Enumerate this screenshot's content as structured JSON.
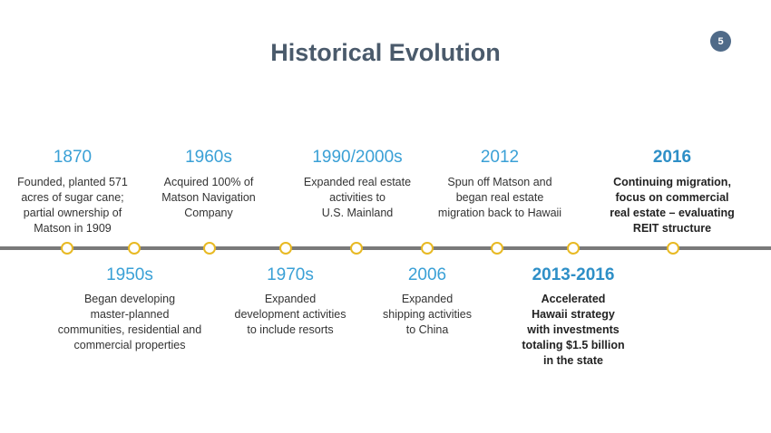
{
  "slide": {
    "title": "Historical Evolution",
    "page_number": "5"
  },
  "timeline": {
    "above": [
      {
        "year": "1870",
        "desc_lines": [
          "Founded, planted 571",
          "acres of sugar cane;",
          "partial ownership of",
          "Matson in 1909"
        ]
      },
      {
        "year": "1960s",
        "desc_lines": [
          "Acquired 100% of",
          "Matson Navigation",
          "Company"
        ]
      },
      {
        "year": "1990/2000s",
        "desc_lines": [
          "Expanded real estate",
          "activities to",
          "U.S. Mainland"
        ]
      },
      {
        "year": "2012",
        "desc_lines": [
          "Spun off Matson and",
          "began real estate",
          "migration back to Hawaii"
        ]
      },
      {
        "year": "2016",
        "desc_lines": [
          "Continuing migration,",
          "focus on commercial",
          "real estate – evaluating",
          "REIT structure"
        ]
      }
    ],
    "below": [
      {
        "year": "1950s",
        "desc_lines": [
          "Began developing",
          "master-planned",
          "communities, residential and",
          "commercial properties"
        ]
      },
      {
        "year": "1970s",
        "desc_lines": [
          "Expanded",
          "development activities",
          "to include resorts"
        ]
      },
      {
        "year": "2006",
        "desc_lines": [
          "Expanded",
          "shipping activities",
          "to China"
        ]
      },
      {
        "year": "2013-2016",
        "desc_lines": [
          "Accelerated",
          "Hawaii strategy",
          "with investments",
          "totaling $1.5 billion",
          "in the state"
        ]
      }
    ]
  },
  "colors": {
    "title": "#4a5a6b",
    "year": "#3aa0d6",
    "marker": "#e8b923",
    "axis": "#7a7a7a",
    "badge": "#4f6a88"
  }
}
